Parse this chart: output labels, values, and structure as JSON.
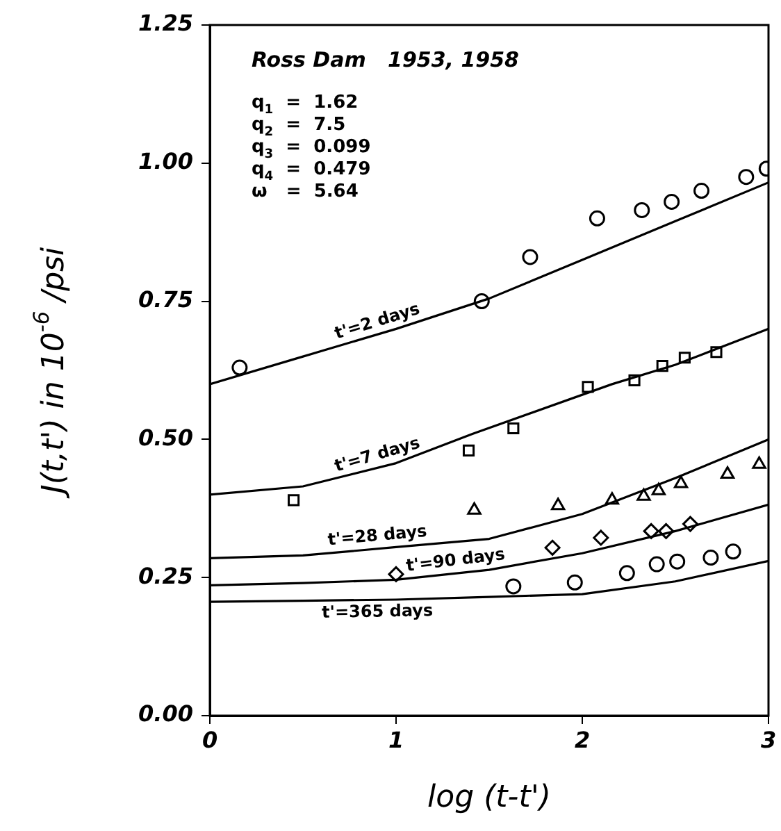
{
  "chart_data": {
    "type": "line",
    "title": "Ross Dam   1953, 1958",
    "xlabel": "log (t-t')",
    "ylabel": "J(t,t') in 10$^{-6}$ /psi",
    "xlim": [
      0,
      3
    ],
    "xticks": [
      0,
      1,
      2,
      3
    ],
    "ylim": [
      0,
      1.25
    ],
    "yticks": [
      {
        "value": 0,
        "label": "0.00"
      },
      {
        "value": 0.25,
        "label": "0.25"
      },
      {
        "value": 0.5,
        "label": "0.50"
      },
      {
        "value": 0.75,
        "label": "0.75"
      },
      {
        "value": 1,
        "label": "1.00"
      },
      {
        "value": 1.25,
        "label": "1.25"
      }
    ],
    "annotations": [
      "q$_{1}$  =  1.62",
      "q$_{2}$  =  7.5",
      "q$_{3}$  =  0.099",
      "q$_{4}$  =  0.479",
      "ω   =  5.64"
    ],
    "series": [
      {
        "name": "t'=2 days",
        "color": "#000000",
        "x": [
          0,
          0.5,
          1,
          1.5,
          2,
          2.5,
          3
        ],
        "values": [
          0.6,
          0.65,
          0.7,
          0.755,
          0.825,
          0.895,
          0.965
        ]
      },
      {
        "name": "t'=7 days",
        "color": "#000000",
        "x": [
          0,
          0.5,
          1,
          1.41,
          2.16,
          2.5,
          3
        ],
        "values": [
          0.4,
          0.415,
          0.457,
          0.51,
          0.6,
          0.635,
          0.7
        ]
      },
      {
        "name": "t'=28 days",
        "color": "#000000",
        "x": [
          0,
          0.5,
          1,
          1.5,
          2,
          2.5,
          3
        ],
        "values": [
          0.285,
          0.29,
          0.305,
          0.32,
          0.365,
          0.43,
          0.5
        ]
      },
      {
        "name": "t'=90 days",
        "color": "#000000",
        "x": [
          0,
          0.5,
          1,
          1.5,
          2,
          2.5,
          3
        ],
        "values": [
          0.236,
          0.24,
          0.246,
          0.264,
          0.294,
          0.334,
          0.382
        ]
      },
      {
        "name": "t'=365 days",
        "color": "#000000",
        "x": [
          0,
          0.5,
          1,
          1.5,
          2,
          2.5,
          3
        ],
        "values": [
          0.206,
          0.208,
          0.21,
          0.215,
          0.22,
          0.243,
          0.28
        ]
      },
      {
        "type": "scatter",
        "marker": "circle",
        "color": "#000000",
        "x": [
          0.16,
          1.46,
          1.72,
          2.08,
          2.32,
          2.48,
          2.64,
          2.88,
          2.99
        ],
        "values": [
          0.63,
          0.75,
          0.83,
          0.9,
          0.915,
          0.93,
          0.95,
          0.975,
          0.99
        ]
      },
      {
        "type": "scatter",
        "marker": "square",
        "color": "#000000",
        "x": [
          0.45,
          1.39,
          1.63,
          2.03,
          2.28,
          2.43,
          2.55,
          2.72
        ],
        "values": [
          0.39,
          0.48,
          0.52,
          0.595,
          0.607,
          0.633,
          0.648,
          0.658
        ]
      },
      {
        "type": "scatter",
        "marker": "triangle",
        "color": "#000000",
        "x": [
          1.42,
          1.87,
          2.16,
          2.33,
          2.41,
          2.53,
          2.78,
          2.95
        ],
        "values": [
          0.372,
          0.38,
          0.39,
          0.397,
          0.407,
          0.42,
          0.437,
          0.455
        ]
      },
      {
        "type": "scatter",
        "marker": "diamond",
        "color": "#000000",
        "x": [
          1.0,
          1.84,
          2.1,
          2.37,
          2.45,
          2.58
        ],
        "values": [
          0.256,
          0.304,
          0.322,
          0.334,
          0.334,
          0.347
        ]
      },
      {
        "type": "scatter",
        "marker": "circle",
        "color": "#000000",
        "x": [
          1.63,
          1.96,
          2.24,
          2.4,
          2.51,
          2.69,
          2.81
        ],
        "values": [
          0.234,
          0.241,
          0.258,
          0.274,
          0.279,
          0.286,
          0.297
        ]
      }
    ]
  }
}
